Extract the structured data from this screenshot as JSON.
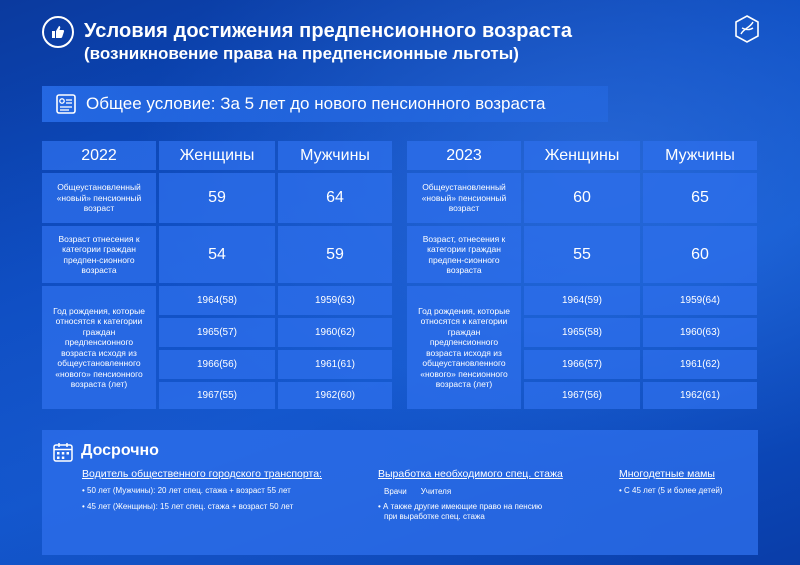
{
  "header": {
    "title": "Условия достижения предпенсионного возраста",
    "subtitle": "(возникновение права на предпенсионные льготы)",
    "badge_icon": "thumbs-up-icon",
    "logo_icon": "ministry-logo-icon"
  },
  "general": {
    "icon": "document-icon",
    "text": "Общее условие: За 5 лет до нового пенсионного возраста"
  },
  "table_2022": {
    "year": "2022",
    "col_women": "Женщины",
    "col_men": "Мужчины",
    "row1_label": "Общеустановленный «новый» пенсионный возраст",
    "row1_women": "59",
    "row1_men": "64",
    "row2_label": "Возраст отнесения к категории граждан предпен-сионного возраста",
    "row2_women": "54",
    "row2_men": "59",
    "row3_label": "Год рождения, которые относятся к категории граждан предпенсионного возраста исходя из общеустановленного «нового» пенсионного возраста (лет)",
    "women_years": [
      "1964(58)",
      "1965(57)",
      "1966(56)",
      "1967(55)"
    ],
    "men_years": [
      "1959(63)",
      "1960(62)",
      "1961(61)",
      "1962(60)"
    ]
  },
  "table_2023": {
    "year": "2023",
    "col_women": "Женщины",
    "col_men": "Мужчины",
    "row1_label": "Общеустановленный «новый» пенсионный возраст",
    "row1_women": "60",
    "row1_men": "65",
    "row2_label": "Возраст, отнесения к категории граждан предпен-сионного возраста",
    "row2_women": "55",
    "row2_men": "60",
    "row3_label": "Год рождения, которые относятся к категории граждан предпенсионного возраста исходя из общеустановленного «нового» пенсионного возраста (лет)",
    "women_years": [
      "1964(59)",
      "1965(58)",
      "1966(57)",
      "1967(56)"
    ],
    "men_years": [
      "1959(64)",
      "1960(63)",
      "1961(62)",
      "1962(61)"
    ]
  },
  "early": {
    "icon": "calendar-icon",
    "title": "Досрочно",
    "col1_title": "Водитель общественного городского транспорта:",
    "col1_item1": "• 50 лет (Мужчины): 20 лет спец. стажа + возраст 55 лет",
    "col1_item2": "• 45 лет (Женщины): 15 лет спец. стажа + возраст 50 лет",
    "col2_title": "Выработка необходимого спец. стажа",
    "col2_tag1": "Врачи",
    "col2_tag2": "Учителя",
    "col2_item1": "• А также другие имеющие право на пенсию",
    "col2_item2": "при выработке спец. стажа",
    "col3_title": "Многодетные мамы",
    "col3_item1": "• С 45 лет (5 и более детей)"
  }
}
